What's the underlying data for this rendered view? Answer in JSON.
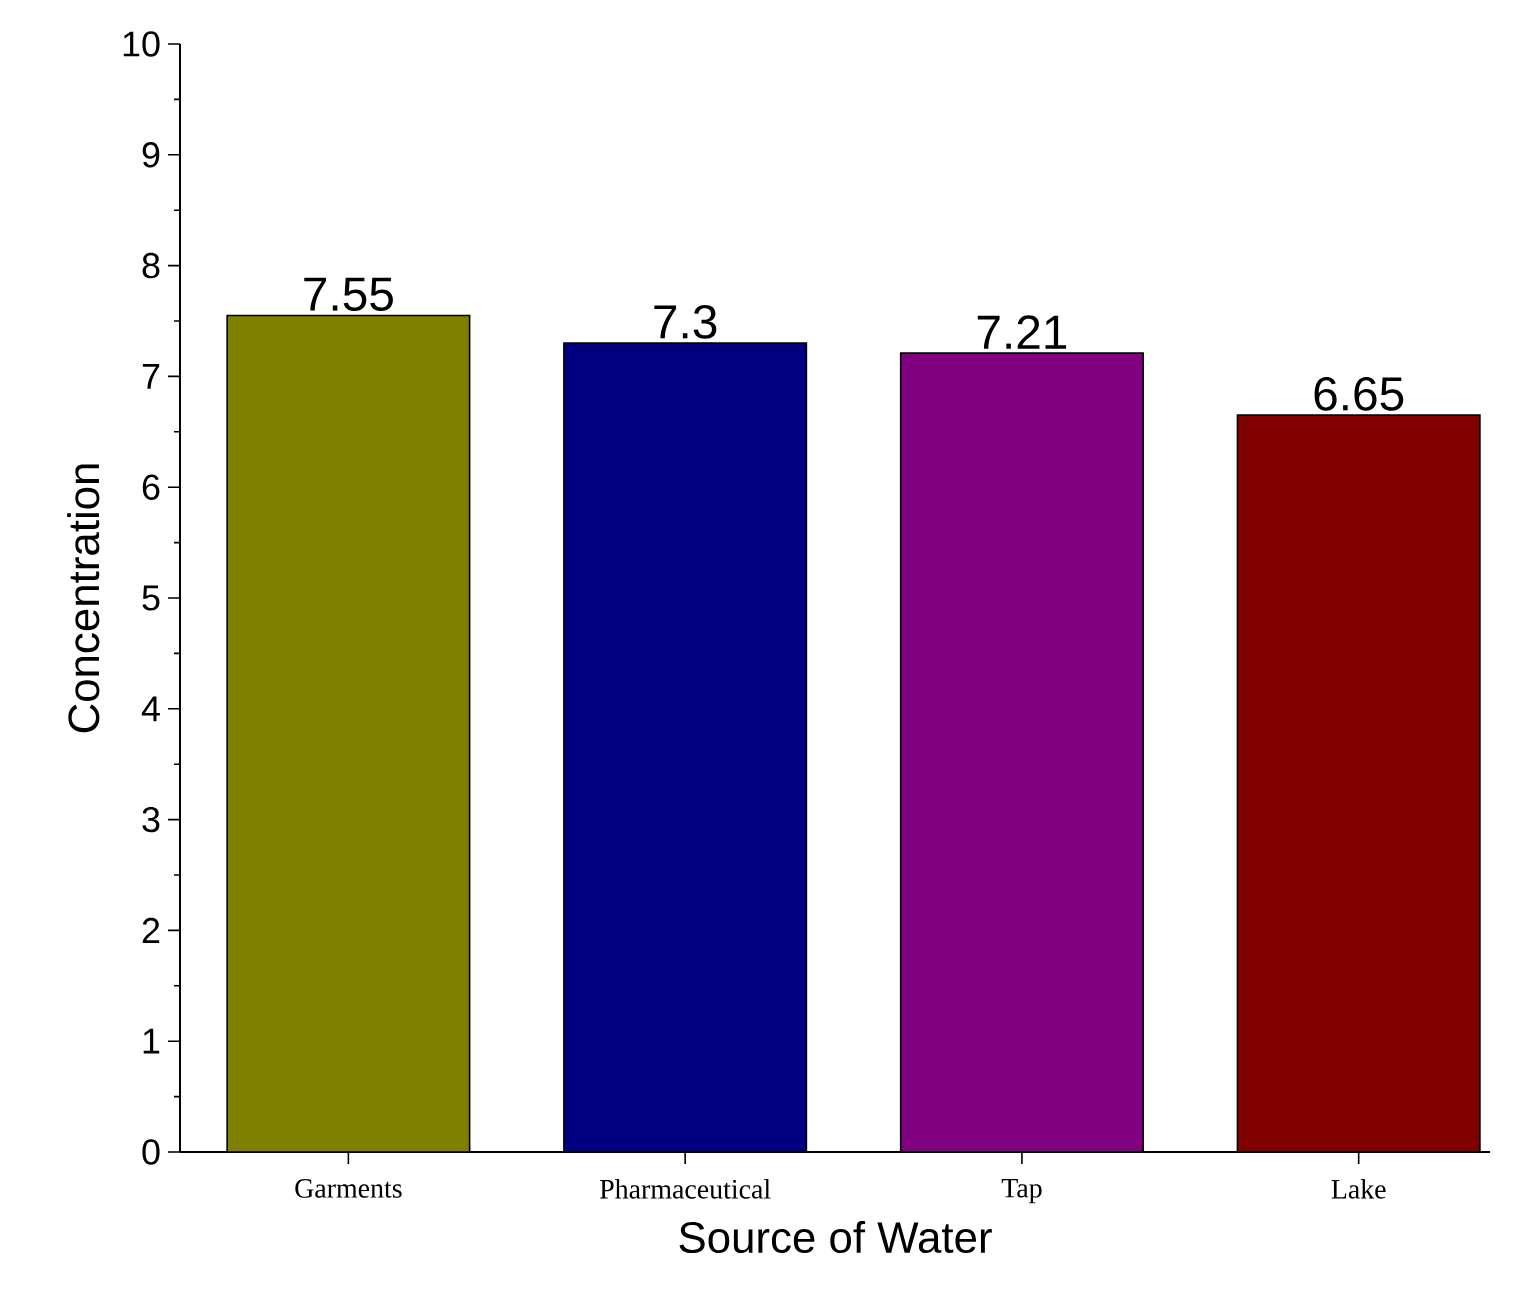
{
  "chart_data": {
    "type": "bar",
    "xlabel": "Source of Water",
    "ylabel": "Concentration",
    "categories": [
      "Garments",
      "Pharmaceutical",
      "Tap",
      "Lake"
    ],
    "values": [
      7.55,
      7.3,
      7.21,
      6.65
    ],
    "colors": [
      "#808000",
      "#000080",
      "#800080",
      "#800000"
    ],
    "ylim": [
      0,
      10
    ],
    "yticks": [
      0,
      1,
      2,
      3,
      4,
      5,
      6,
      7,
      8,
      9,
      10
    ],
    "data_labels": true
  }
}
